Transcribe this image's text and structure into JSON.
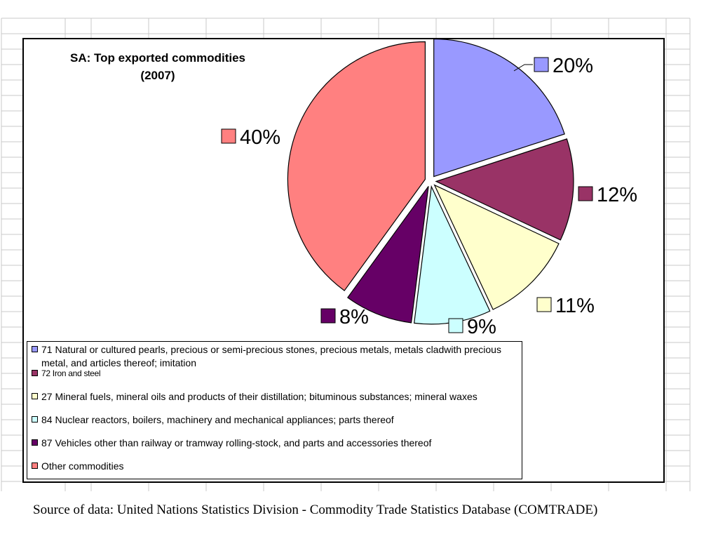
{
  "chart_data": {
    "type": "pie",
    "title": [
      "SA: Top exported commodities",
      "(2007)"
    ],
    "series": [
      {
        "values": [
          20,
          12,
          11,
          9,
          8,
          40
        ],
        "labels": [
          "20%",
          "12%",
          "11%",
          "9%",
          "8%",
          "40%"
        ]
      }
    ],
    "categories": [
      "71 Natural or cultured pearls, precious or semi-precious stones, precious metals, metals cladwith precious metal, and articles thereof; imitation",
      "72 Iron and steel",
      "27 Mineral fuels, mineral oils and products of their distillation; bituminous substances; mineral waxes",
      "84 Nuclear reactors, boilers, machinery and mechanical appliances; parts thereof",
      "87 Vehicles other than railway or tramway rolling-stock, and parts and accessories thereof",
      "Other commodities"
    ],
    "colors": [
      "#9999ff",
      "#993366",
      "#ffffcc",
      "#ccffff",
      "#660066",
      "#ff8080"
    ],
    "legend_position": "bottom-left"
  },
  "source": "Source of data: United Nations Statistics Division - Commodity Trade Statistics Database (COMTRADE)"
}
